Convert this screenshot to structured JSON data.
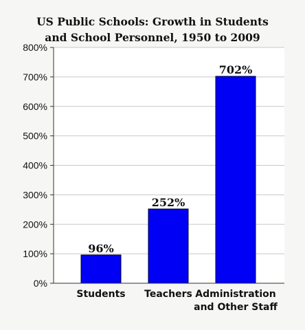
{
  "chart_data": {
    "type": "bar",
    "title": [
      "US Public Schools: Growth in Students",
      "and School Personnel, 1950 to 2009"
    ],
    "categories": [
      [
        "Students"
      ],
      [
        "Teachers"
      ],
      [
        "Administration",
        "and Other Staff"
      ]
    ],
    "values": [
      96,
      252,
      702
    ],
    "data_labels": [
      "96%",
      "252%",
      "702%"
    ],
    "y_ticks": [
      0,
      100,
      200,
      300,
      400,
      500,
      600,
      700,
      800
    ],
    "y_tick_labels": [
      "0%",
      "100%",
      "200%",
      "300%",
      "400%",
      "500%",
      "600%",
      "700%",
      "800%"
    ],
    "ylim": [
      0,
      800
    ],
    "grid": true,
    "bar_color": "#0000f5",
    "bar_edge_color": "#000033",
    "grid_color": "#c8c8c8"
  }
}
